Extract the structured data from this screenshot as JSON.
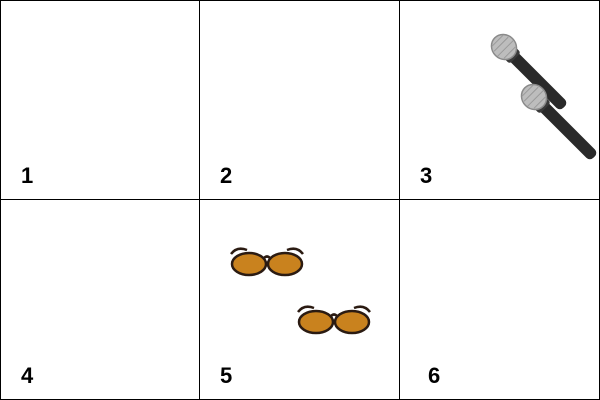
{
  "cells": [
    {
      "label": "1",
      "object_icon": null,
      "count": 0
    },
    {
      "label": "2",
      "object_icon": null,
      "count": 0
    },
    {
      "label": "3",
      "object_icon": "microphone-icon",
      "count": 2
    },
    {
      "label": "4",
      "object_icon": null,
      "count": 0
    },
    {
      "label": "5",
      "object_icon": "sunglasses-icon",
      "count": 2
    },
    {
      "label": "6",
      "object_icon": null,
      "count": 0
    }
  ],
  "colors": {
    "border": "#000000",
    "mic_body": "#2a2a2a",
    "mic_grille": "#bdbdbd",
    "lens": "#c9821e",
    "frame": "#2b1b12"
  }
}
